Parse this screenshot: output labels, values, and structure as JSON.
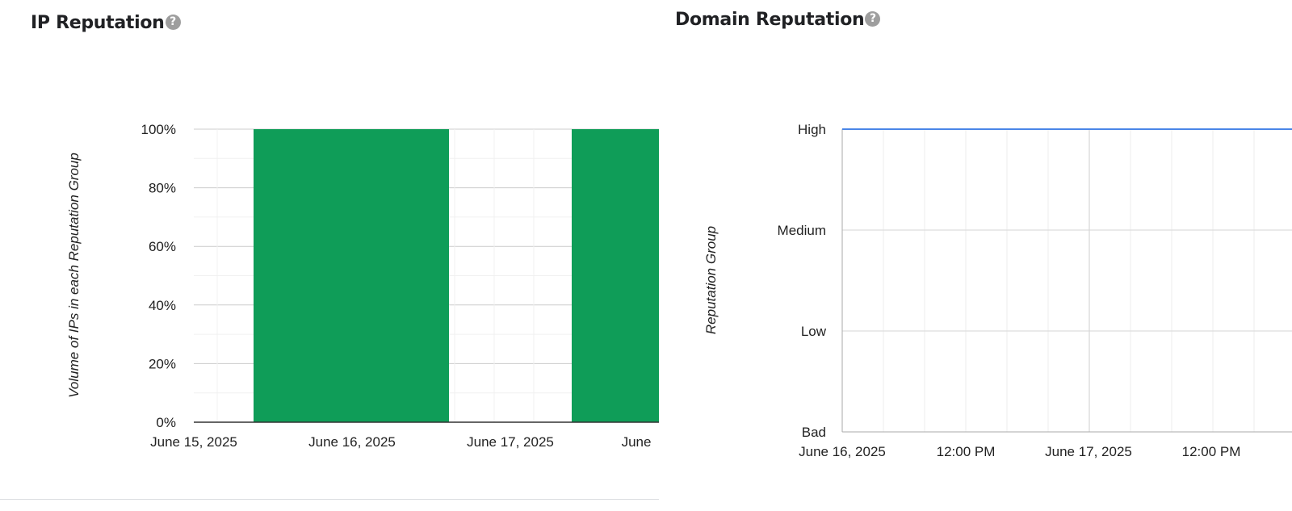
{
  "ip_reputation": {
    "title": "IP Reputation",
    "help_icon": "?",
    "chart_data": {
      "type": "bar",
      "stacked": true,
      "ylabel": "Volume of IPs in each Reputation Group",
      "xlabel": "",
      "ylim": [
        0,
        100
      ],
      "yticks": [
        "0%",
        "20%",
        "40%",
        "60%",
        "80%",
        "100%"
      ],
      "x_tick_labels": [
        "June 15, 2025",
        "June 16, 2025",
        "June 17, 2025",
        "June"
      ],
      "categories": [
        "2025-06-15",
        "2025-06-16",
        "2025-06-17",
        "2025-06-18"
      ],
      "series": [
        {
          "values": [
            0,
            100,
            0,
            100
          ],
          "color": "#0f9d58"
        }
      ],
      "grid": true,
      "legend": "none"
    }
  },
  "domain_reputation": {
    "title": "Domain Reputation",
    "help_icon": "?",
    "chart_data": {
      "type": "line",
      "ylabel": "Reputation Group",
      "xlabel": "",
      "y_categories": [
        "Bad",
        "Low",
        "Medium",
        "High"
      ],
      "x_tick_labels": [
        "June 16, 2025",
        "12:00 PM",
        "June 17, 2025",
        "12:00 PM"
      ],
      "x_range": [
        "2025-06-16 00:00",
        "2025-06-17 18:00"
      ],
      "series": [
        {
          "x": [
            "2025-06-16 00:00",
            "2025-06-17 18:00"
          ],
          "values": [
            "High",
            "High"
          ],
          "color": "#4a86e8"
        }
      ],
      "grid": true,
      "legend": "none"
    }
  }
}
